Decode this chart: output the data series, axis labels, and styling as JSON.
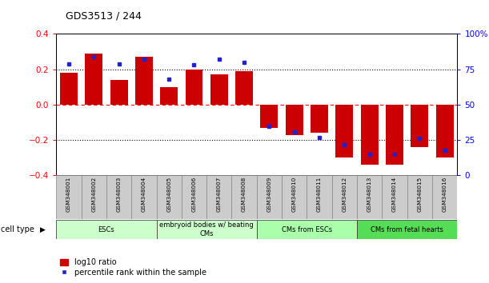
{
  "title": "GDS3513 / 244",
  "samples": [
    "GSM348001",
    "GSM348002",
    "GSM348003",
    "GSM348004",
    "GSM348005",
    "GSM348006",
    "GSM348007",
    "GSM348008",
    "GSM348009",
    "GSM348010",
    "GSM348011",
    "GSM348012",
    "GSM348013",
    "GSM348014",
    "GSM348015",
    "GSM348016"
  ],
  "log10_ratio": [
    0.18,
    0.29,
    0.14,
    0.27,
    0.1,
    0.2,
    0.17,
    0.19,
    -0.13,
    -0.17,
    -0.16,
    -0.3,
    -0.34,
    -0.34,
    -0.24,
    -0.3
  ],
  "percentile_rank": [
    79,
    84,
    79,
    82,
    68,
    78,
    82,
    80,
    35,
    31,
    27,
    22,
    15,
    15,
    26,
    18
  ],
  "bar_color": "#cc0000",
  "dot_color": "#2222cc",
  "ylim_left": [
    -0.4,
    0.4
  ],
  "ylim_right": [
    0,
    100
  ],
  "yticks_left": [
    -0.4,
    -0.2,
    0.0,
    0.2,
    0.4
  ],
  "yticks_right": [
    0,
    25,
    50,
    75,
    100
  ],
  "ytick_right_labels": [
    "0",
    "25",
    "50",
    "75",
    "100%"
  ],
  "hlines_dotted": [
    0.2,
    -0.2
  ],
  "hline_dashed_val": 0.0,
  "cell_types": [
    {
      "label": "ESCs",
      "start": 0,
      "end": 3,
      "color": "#ccffcc"
    },
    {
      "label": "embryoid bodies w/ beating\nCMs",
      "start": 4,
      "end": 7,
      "color": "#ccffcc"
    },
    {
      "label": "CMs from ESCs",
      "start": 8,
      "end": 11,
      "color": "#aaffaa"
    },
    {
      "label": "CMs from fetal hearts",
      "start": 12,
      "end": 15,
      "color": "#55dd55"
    }
  ],
  "legend_bar_label": "log10 ratio",
  "legend_dot_label": "percentile rank within the sample",
  "cell_type_label": "cell type",
  "bar_width": 0.7,
  "label_box_color": "#cccccc",
  "bg_color": "#ffffff"
}
